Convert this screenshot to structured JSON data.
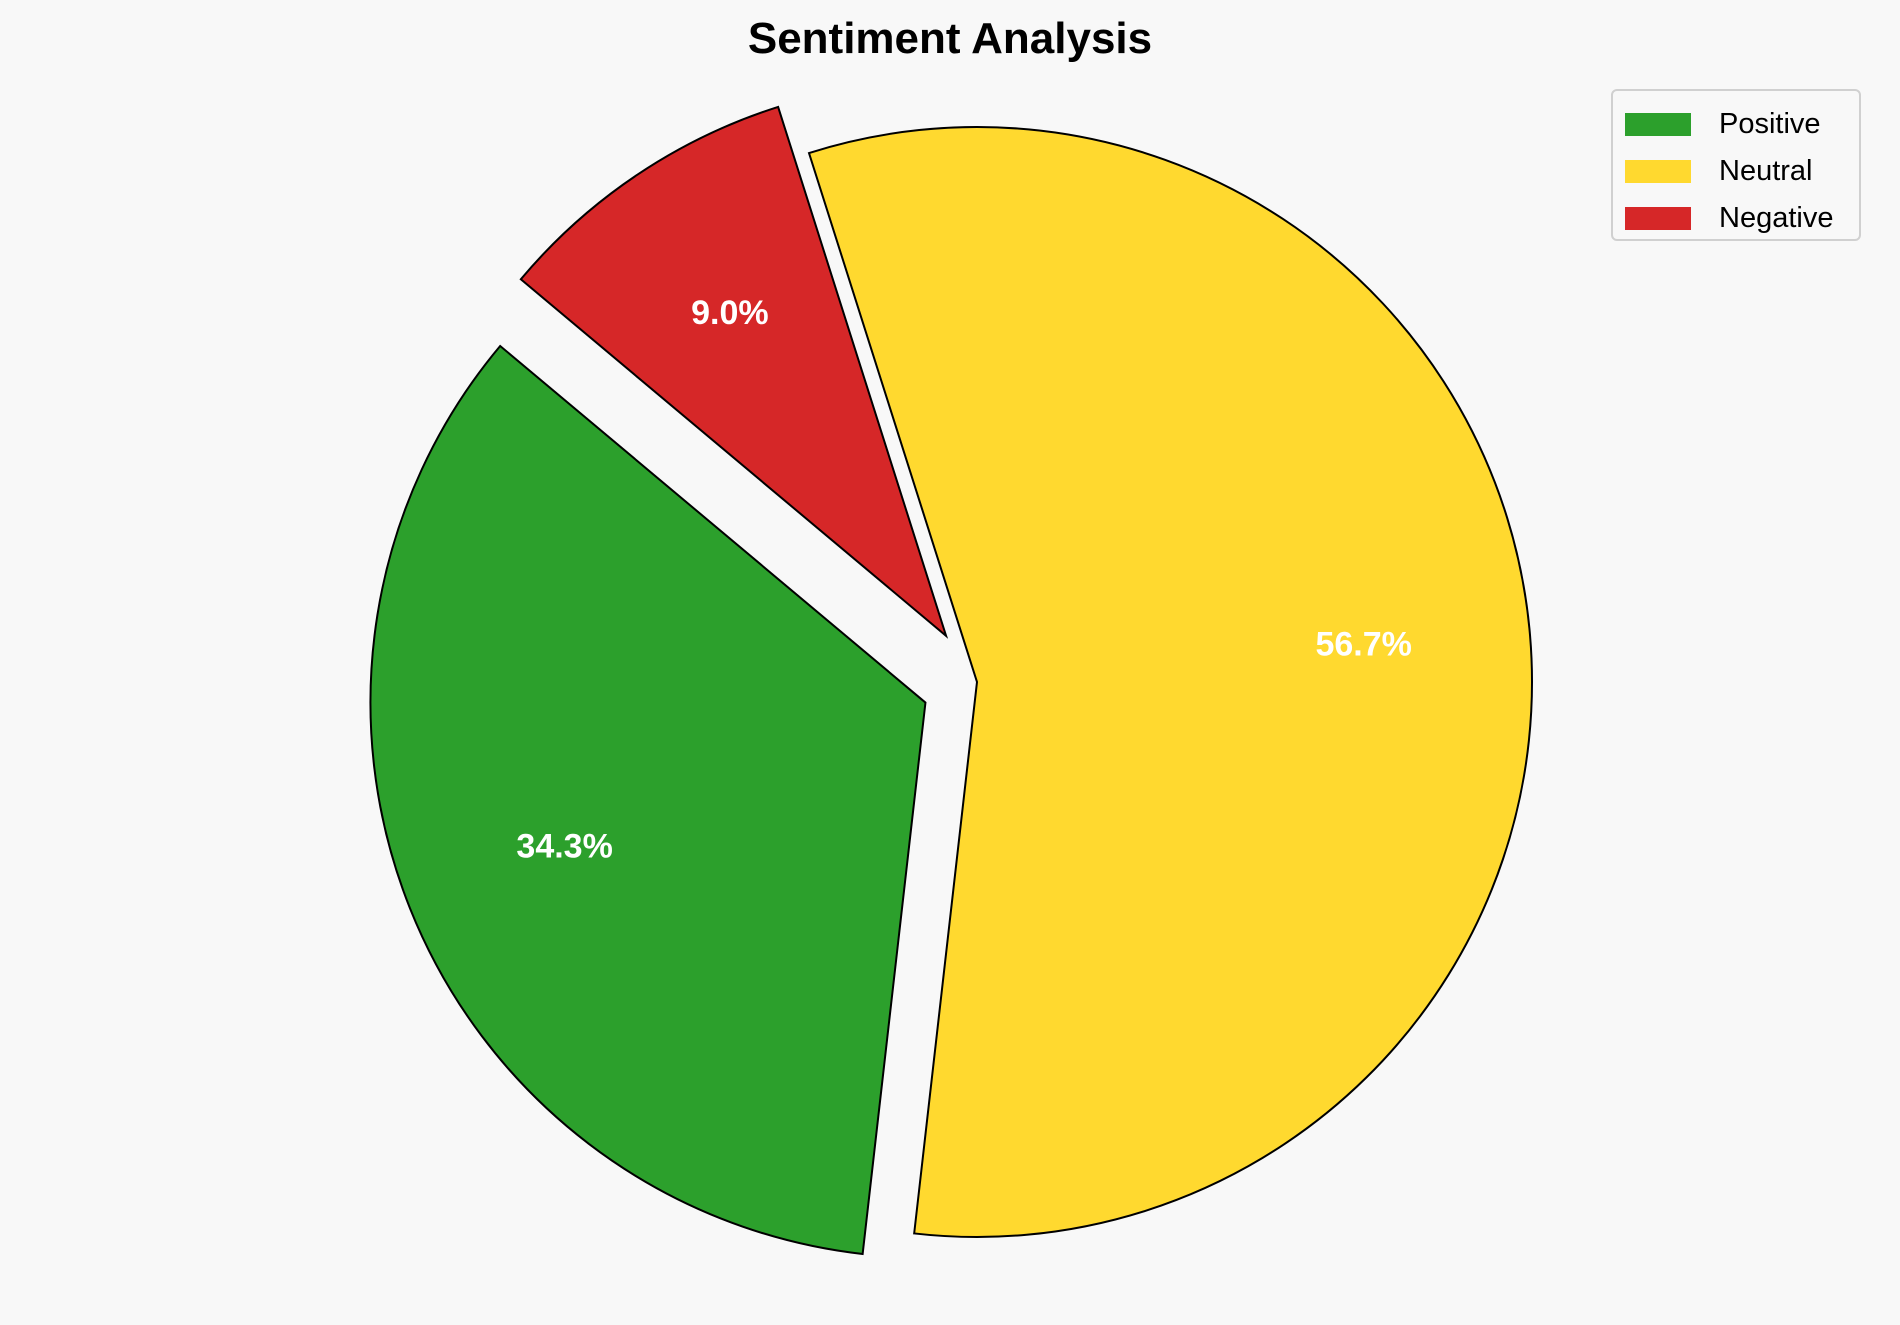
{
  "chart_data": {
    "type": "pie",
    "title": "Sentiment Analysis",
    "categories": [
      "Positive",
      "Neutral",
      "Negative"
    ],
    "values": [
      34.3,
      56.7,
      9.0
    ],
    "labels": [
      "34.3%",
      "56.7%",
      "9.0%"
    ],
    "colors": [
      "#2ca02c",
      "#ffd92f",
      "#d62728"
    ],
    "explode": [
      0.1,
      0,
      0.1
    ],
    "legend_position": "top-right"
  }
}
